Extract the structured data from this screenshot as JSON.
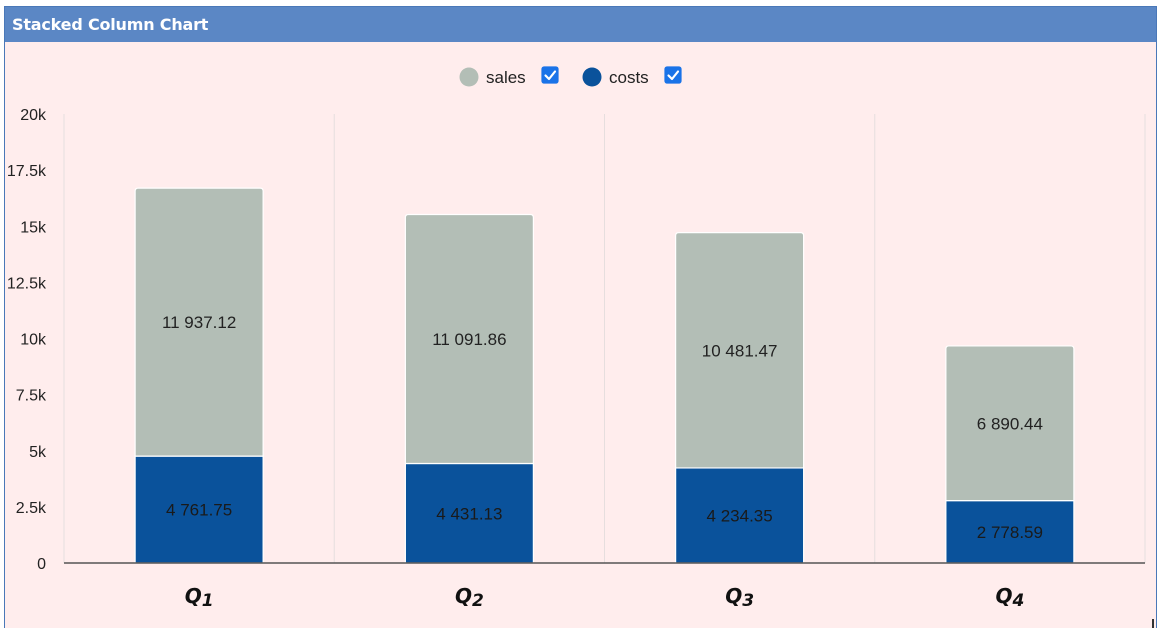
{
  "panel": {
    "title": "Stacked Column Chart"
  },
  "chart_data": {
    "type": "bar",
    "stacked": true,
    "categories": [
      "Q1",
      "Q2",
      "Q3",
      "Q4"
    ],
    "series": [
      {
        "name": "costs",
        "color": "#0a529b",
        "values": [
          4761.75,
          4431.13,
          4234.35,
          2778.59
        ],
        "labels": [
          "4 761.75",
          "4 431.13",
          "4 234.35",
          "2 778.59"
        ]
      },
      {
        "name": "sales",
        "color": "#b3beb6",
        "values": [
          11937.12,
          11091.86,
          10481.47,
          6890.44
        ],
        "labels": [
          "11 937.12",
          "11 091.86",
          "10 481.47",
          "6 890.44"
        ]
      }
    ],
    "legend": [
      {
        "name": "sales",
        "color": "#b3beb6",
        "checked": true
      },
      {
        "name": "costs",
        "color": "#0a529b",
        "checked": true
      }
    ],
    "legend_position": "top-center",
    "yticks": [
      {
        "value": 0,
        "label": "0"
      },
      {
        "value": 2500,
        "label": "2.5k"
      },
      {
        "value": 5000,
        "label": "5k"
      },
      {
        "value": 7500,
        "label": "7.5k"
      },
      {
        "value": 10000,
        "label": "10k"
      },
      {
        "value": 12500,
        "label": "12.5k"
      },
      {
        "value": 15000,
        "label": "15k"
      },
      {
        "value": 17500,
        "label": "17.5k"
      },
      {
        "value": 20000,
        "label": "20k"
      }
    ],
    "ylim": [
      0,
      20000
    ],
    "grid": "vertical-category-separators",
    "xlabel": "",
    "ylabel": ""
  }
}
